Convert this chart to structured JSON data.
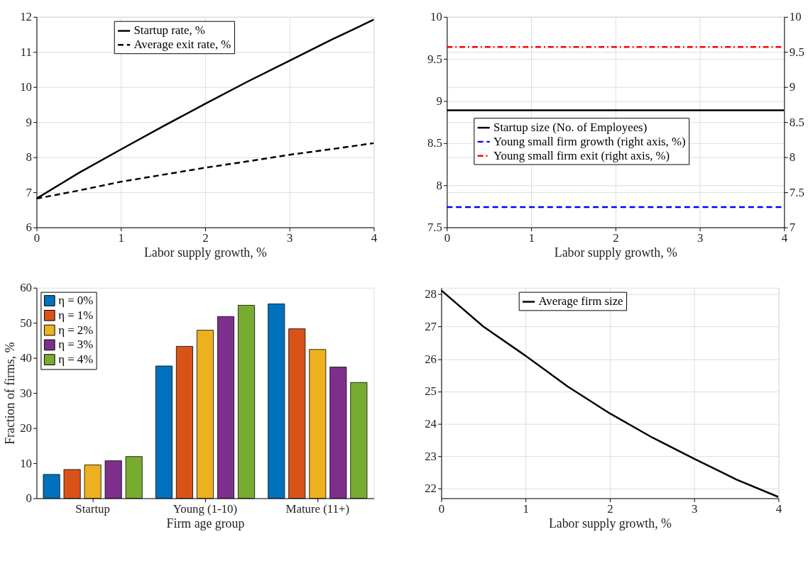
{
  "chart_data": [
    {
      "type": "line",
      "xlabel": "Labor supply growth, %",
      "x": [
        0,
        0.5,
        1,
        1.5,
        2,
        2.5,
        3,
        3.5,
        4
      ],
      "xlim": [
        0,
        4
      ],
      "xticks": [
        0,
        1,
        2,
        3,
        4
      ],
      "ylim": [
        6,
        12
      ],
      "yticks": [
        6,
        7,
        8,
        9,
        10,
        11,
        12
      ],
      "grid": true,
      "legend": "top",
      "series": [
        {
          "name": "Startup rate, %",
          "color": "#000000",
          "line_style": "solid",
          "values": [
            6.82,
            7.55,
            8.22,
            8.88,
            9.52,
            10.15,
            10.75,
            11.35,
            11.92
          ]
        },
        {
          "name": "Average exit rate, %",
          "color": "#000000",
          "line_style": "dashed",
          "values": [
            6.82,
            7.05,
            7.3,
            7.5,
            7.7,
            7.88,
            8.07,
            8.23,
            8.4
          ]
        }
      ]
    },
    {
      "type": "line",
      "xlabel": "Labor supply growth, %",
      "x": [
        0,
        4
      ],
      "xlim": [
        0,
        4
      ],
      "xticks": [
        0,
        1,
        2,
        3,
        4
      ],
      "ylim": [
        7.5,
        10
      ],
      "yticks": [
        7.5,
        8,
        8.5,
        9,
        9.5,
        10
      ],
      "y2lim": [
        7,
        10
      ],
      "y2ticks": [
        7,
        7.5,
        8,
        8.5,
        9,
        9.5,
        10
      ],
      "grid": true,
      "legend": "center",
      "series": [
        {
          "name": "Startup size (No. of Employees)",
          "color": "#000000",
          "line_style": "solid",
          "values": [
            8.89,
            8.89
          ]
        },
        {
          "name": "Young small firm growth (right axis, %)",
          "color": "#0000ff",
          "line_style": "dashed",
          "axis": "y2",
          "values": [
            7.29,
            7.29
          ]
        },
        {
          "name": "Young small firm exit (right axis, %)",
          "color": "#ff0000",
          "line_style": "dashdot",
          "axis": "y2",
          "values": [
            9.57,
            9.57
          ]
        }
      ]
    },
    {
      "type": "bar",
      "xlabel": "Firm age group",
      "ylabel": "Fraction of firms, %",
      "categories": [
        "Startup",
        "Young (1-10)",
        "Mature (11+)"
      ],
      "ylim": [
        0,
        60
      ],
      "yticks": [
        0,
        10,
        20,
        30,
        40,
        50,
        60
      ],
      "grid": false,
      "legend": "top left",
      "series": [
        {
          "name": "η = 0%",
          "color": "#0072bd",
          "values": [
            6.8,
            37.7,
            55.4
          ]
        },
        {
          "name": "η = 1%",
          "color": "#d95319",
          "values": [
            8.2,
            43.3,
            48.3
          ]
        },
        {
          "name": "η = 2%",
          "color": "#edb120",
          "values": [
            9.5,
            47.9,
            42.4
          ]
        },
        {
          "name": "η = 3%",
          "color": "#7e2f8e",
          "values": [
            10.7,
            51.8,
            37.4
          ]
        },
        {
          "name": "η = 4%",
          "color": "#77ac30",
          "values": [
            11.9,
            55.0,
            33.0
          ]
        }
      ]
    },
    {
      "type": "line",
      "xlabel": "Labor supply growth, %",
      "x": [
        0,
        0.5,
        1,
        1.5,
        2,
        2.5,
        3,
        3.5,
        4
      ],
      "xlim": [
        0,
        4
      ],
      "xticks": [
        0,
        1,
        2,
        3,
        4
      ],
      "ylim": [
        21.7,
        28.2
      ],
      "yticks": [
        22,
        23,
        24,
        25,
        26,
        27,
        28
      ],
      "grid": true,
      "legend": "top",
      "series": [
        {
          "name": "Average firm size",
          "color": "#000000",
          "line_style": "solid",
          "values": [
            28.12,
            27.0,
            26.1,
            25.15,
            24.32,
            23.58,
            22.92,
            22.28,
            21.74
          ]
        }
      ]
    }
  ]
}
